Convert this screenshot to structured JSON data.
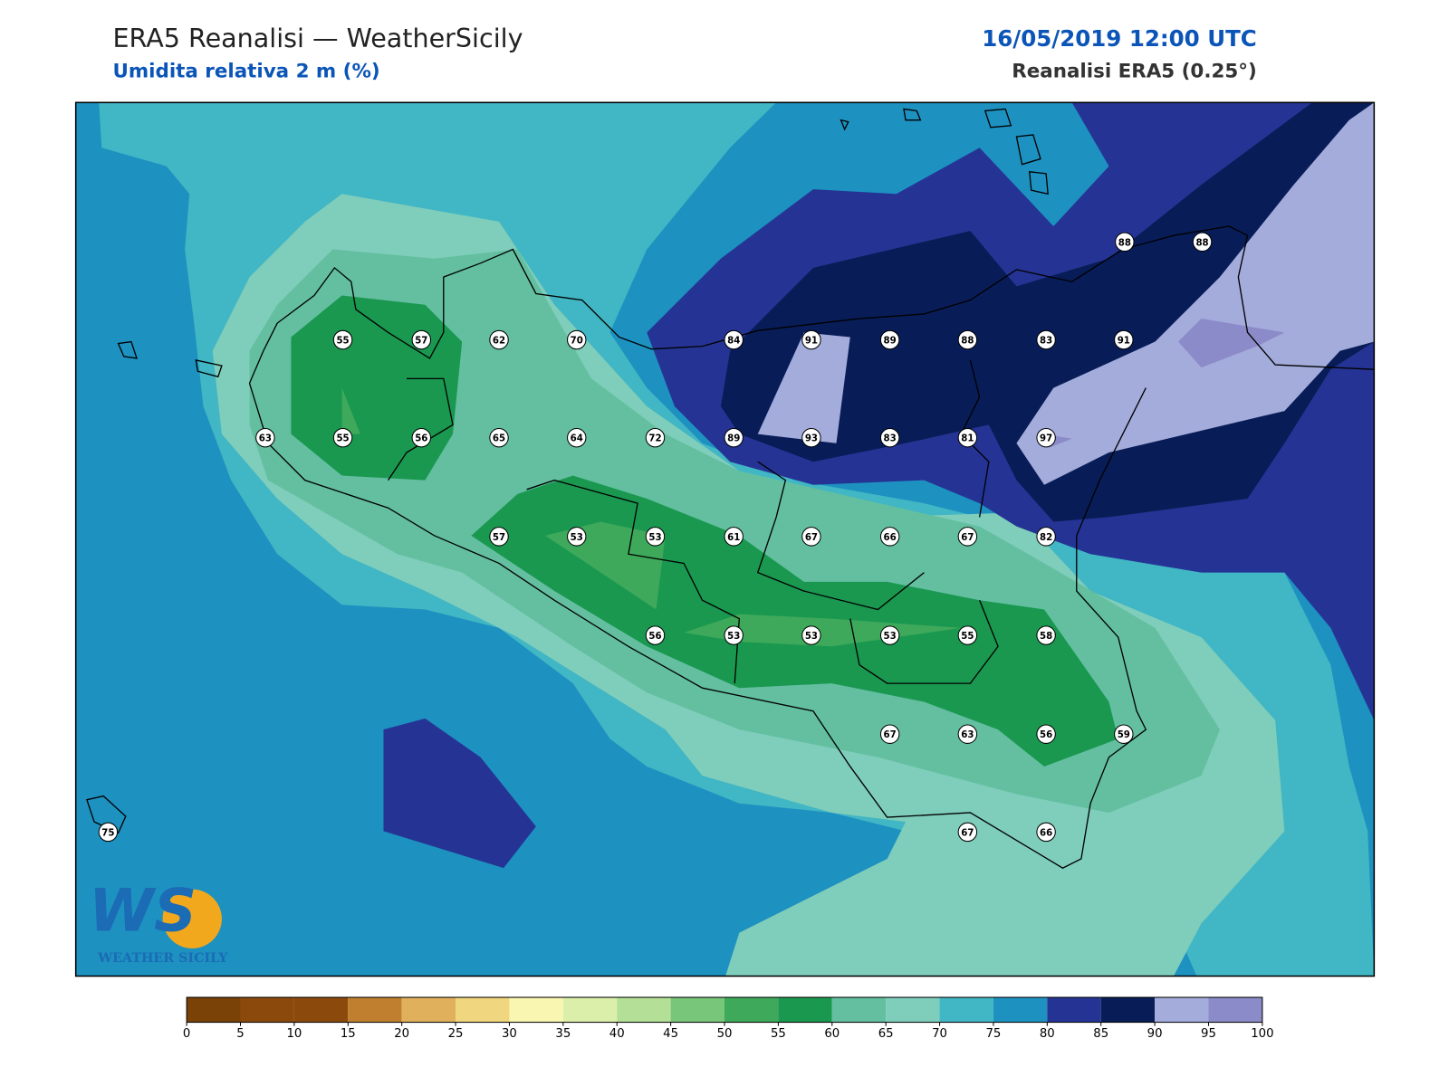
{
  "header": {
    "title": "ERA5 Reanalisi — WeatherSicily",
    "subtitle": "Umidita relativa 2 m (%)",
    "datetime": "16/05/2019 12:00 UTC",
    "source": "Reanalisi ERA5 (0.25°)"
  },
  "stations": [
    55,
    57,
    62,
    70,
    84,
    91,
    89,
    88,
    83,
    91,
    88,
    88,
    63,
    55,
    56,
    65,
    64,
    72,
    89,
    93,
    83,
    81,
    97,
    57,
    53,
    53,
    61,
    67,
    66,
    67,
    82,
    56,
    53,
    53,
    53,
    55,
    58,
    67,
    63,
    56,
    59,
    67,
    66,
    75
  ],
  "logo": {
    "mark": "WS",
    "text": "WEATHER SICILY"
  },
  "colorbar": {
    "lim": [
      0,
      100
    ],
    "ticks": [
      0,
      5,
      10,
      15,
      20,
      25,
      30,
      35,
      40,
      45,
      50,
      55,
      60,
      65,
      70,
      75,
      80,
      85,
      90,
      95,
      100
    ],
    "colors": [
      "#7a4207",
      "#8b4a0c",
      "#8b4a0c",
      "#bf7f2e",
      "#e0b05c",
      "#f0d67e",
      "#f8f6b0",
      "#dcefaa",
      "#b3e096",
      "#78c67a",
      "#3ea95a",
      "#1a9850",
      "#63bfa0",
      "#7fcdbb",
      "#41b6c4",
      "#1d91c0",
      "#253494",
      "#081d58",
      "#a3acdb",
      "#8c8bc9"
    ]
  }
}
